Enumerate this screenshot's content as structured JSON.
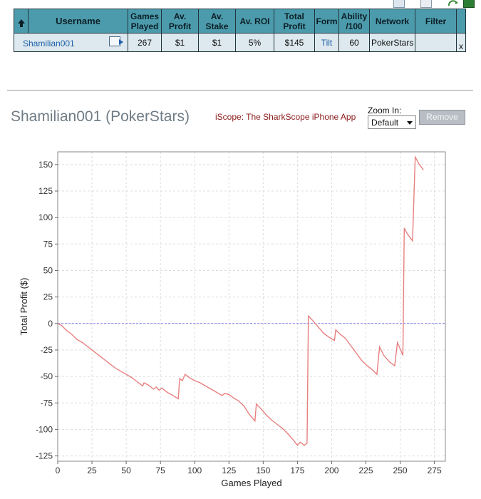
{
  "table": {
    "headers": {
      "username": "Username",
      "games_played": [
        "Games",
        "Played"
      ],
      "av_profit": [
        "Av.",
        "Profit"
      ],
      "av_stake": [
        "Av.",
        "Stake"
      ],
      "av_roi": "Av. ROI",
      "total_profit": [
        "Total",
        "Profit"
      ],
      "form": "Form",
      "ability": [
        "Ability",
        "/100"
      ],
      "network": "Network",
      "filter": "Filter"
    },
    "row": {
      "username": "Shamilian001",
      "games_played": "267",
      "av_profit": "$1",
      "av_stake": "$1",
      "av_roi": "5%",
      "total_profit": "$145",
      "form": "Tilt",
      "ability": "60",
      "network": "PokerStars",
      "filter": "",
      "remove": "x"
    }
  },
  "chart_panel": {
    "title": "Shamilian001 (PokerStars)",
    "iscope_link": "iScope: The SharkScope iPhone App",
    "zoom_label": "Zoom In:",
    "zoom_value": "Default",
    "remove_label": "Remove"
  },
  "chart_data": {
    "type": "line",
    "title": "",
    "xlabel": "Games Played",
    "ylabel": "Total Profit ($)",
    "xlim": [
      0,
      283
    ],
    "ylim": [
      -130,
      162
    ],
    "x_ticks": [
      0,
      25,
      50,
      75,
      100,
      125,
      150,
      175,
      200,
      225,
      250,
      275
    ],
    "y_ticks": [
      -125,
      -100,
      -75,
      -50,
      -25,
      0,
      25,
      50,
      75,
      100,
      125,
      150
    ],
    "grid": true,
    "zero_line": true,
    "series": [
      {
        "color": "#e87f7f",
        "x": [
          0,
          3,
          6,
          10,
          14,
          18,
          22,
          26,
          30,
          34,
          38,
          42,
          46,
          50,
          54,
          58,
          62,
          63,
          66,
          70,
          72,
          74,
          76,
          80,
          84,
          88,
          89,
          91,
          93,
          96,
          100,
          104,
          108,
          112,
          116,
          120,
          122,
          125,
          128,
          132,
          136,
          140,
          144,
          145,
          148,
          152,
          156,
          160,
          164,
          168,
          172,
          175,
          177,
          180,
          182,
          183,
          186,
          190,
          194,
          198,
          202,
          203,
          206,
          210,
          214,
          218,
          222,
          226,
          230,
          233,
          235,
          238,
          242,
          246,
          248,
          250,
          252,
          253,
          255,
          259,
          261,
          264,
          267
        ],
        "y": [
          0,
          -2,
          -6,
          -10,
          -15,
          -18,
          -22,
          -26,
          -30,
          -34,
          -38,
          -42,
          -45,
          -48,
          -51,
          -55,
          -59,
          -56,
          -58,
          -62,
          -60,
          -63,
          -61,
          -65,
          -68,
          -71,
          -52,
          -54,
          -48,
          -51,
          -54,
          -56,
          -59,
          -62,
          -65,
          -68,
          -66,
          -67,
          -70,
          -73,
          -78,
          -86,
          -92,
          -76,
          -80,
          -86,
          -91,
          -95,
          -99,
          -104,
          -110,
          -115,
          -112,
          -115,
          -113,
          7,
          3,
          -3,
          -9,
          -13,
          -16,
          -6,
          -10,
          -14,
          -21,
          -28,
          -35,
          -40,
          -44,
          -48,
          -22,
          -30,
          -36,
          -40,
          -18,
          -24,
          -30,
          90,
          85,
          78,
          157,
          150,
          145
        ]
      }
    ]
  }
}
